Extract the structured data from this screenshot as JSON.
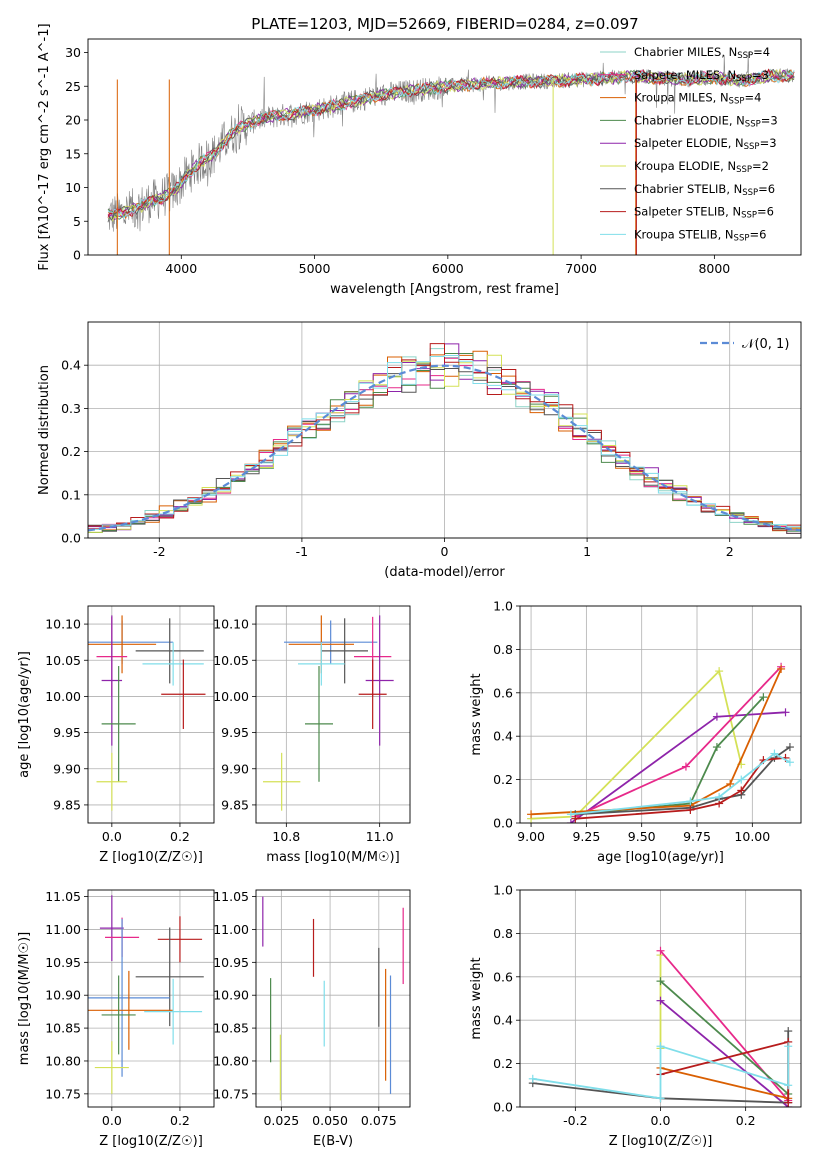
{
  "figure": {
    "title_parts": [
      "PLATE=1203, MJD=52669, FIBERID=0284, z=0.097"
    ],
    "panel_names": [
      "spectrum",
      "residuals",
      "age-metallicity",
      "age-mass",
      "age-weight",
      "mass-metallicity",
      "mass-ebv",
      "metallicity-weight"
    ]
  },
  "colors": {
    "chabrier_miles": "#8dd3c7",
    "salpeter_miles": "#e7298a",
    "kroupa_miles": "#d95f02",
    "chabrier_elodie": "#4d8a4d",
    "salpeter_elodie": "#8e24aa",
    "kroupa_elodie": "#d4e157",
    "chabrier_stelib": "#555555",
    "salpeter_stelib": "#b71c1c",
    "kroupa_stelib": "#80deea",
    "normal": "#5b8bd6",
    "data": "#808080"
  },
  "chart_data": [
    {
      "id": "spectrum",
      "type": "line",
      "title": "PLATE=1203, MJD=52669, FIBERID=0284, z=0.097",
      "xlabel": "wavelength [Angstrom, rest frame]",
      "ylabel": "Flux [fλ10^-17 erg cm^-2 s^-1 A^-1]",
      "xlim": [
        3300,
        8650
      ],
      "ylim": [
        0,
        32
      ],
      "xticks": [
        4000,
        5000,
        6000,
        7000,
        8000
      ],
      "yticks": [
        0,
        5,
        10,
        15,
        20,
        25,
        30
      ],
      "continuum": {
        "x": [
          3450,
          3550,
          3650,
          3750,
          3850,
          3950,
          4050,
          4150,
          4250,
          4350,
          4450,
          4600,
          4800,
          5000,
          5200,
          5400,
          5600,
          5800,
          6000,
          6200,
          6400,
          6600,
          6800,
          7000,
          7200,
          7400,
          7600,
          7800,
          8000,
          8200,
          8400
        ],
        "y": [
          5.8,
          6.2,
          6.8,
          7.8,
          8.5,
          9.5,
          12.0,
          13.8,
          15.0,
          17.5,
          19.0,
          20.2,
          20.8,
          21.5,
          22.3,
          23.3,
          24.0,
          24.5,
          25.0,
          25.3,
          25.5,
          25.7,
          25.8,
          26.0,
          26.2,
          26.5,
          26.2,
          26.0,
          26.3,
          25.8,
          26.5
        ]
      },
      "legend_placement": "right",
      "series": [
        {
          "name": "Chabrier MILES, N<sub>SSP</sub>=4",
          "color_key": "chabrier_miles"
        },
        {
          "name": "Salpeter MILES, N<sub>SSP</sub>=3",
          "color_key": "salpeter_miles"
        },
        {
          "name": "Kroupa MILES, N<sub>SSP</sub>=4",
          "color_key": "kroupa_miles"
        },
        {
          "name": "Chabrier ELODIE, N<sub>SSP</sub>=3",
          "color_key": "chabrier_elodie"
        },
        {
          "name": "Salpeter ELODIE, N<sub>SSP</sub>=3",
          "color_key": "salpeter_elodie"
        },
        {
          "name": "Kroupa ELODIE, N<sub>SSP</sub>=2",
          "color_key": "kroupa_elodie"
        },
        {
          "name": "Chabrier STELIB, N<sub>SSP</sub>=6",
          "color_key": "chabrier_stelib"
        },
        {
          "name": "Salpeter STELIB, N<sub>SSP</sub>=6",
          "color_key": "salpeter_stelib"
        },
        {
          "name": "Kroupa STELIB, N<sub>SSP</sub>=6",
          "color_key": "kroupa_stelib"
        }
      ],
      "edges": [
        {
          "x": 3520,
          "color_key": "kroupa_miles"
        },
        {
          "x": 3910,
          "color_key": "kroupa_miles"
        },
        {
          "x": 6790,
          "color_key": "kroupa_elodie"
        },
        {
          "x": 7410,
          "color_key": "kroupa_miles"
        },
        {
          "x": 7415,
          "color_key": "salpeter_stelib"
        }
      ]
    },
    {
      "id": "residuals",
      "type": "line",
      "xlabel": "(data-model)/error",
      "ylabel": "Normed distribution",
      "xlim": [
        -2.5,
        2.5
      ],
      "ylim": [
        0,
        0.5
      ],
      "xticks": [
        -2,
        -1,
        0,
        1,
        2
      ],
      "yticks": [
        0.0,
        0.1,
        0.2,
        0.3,
        0.4
      ],
      "grid": true,
      "legend_placement": "top-right",
      "normal_label": "𝒩(0, 1)",
      "bin_width": 0.1,
      "series_keys": [
        "chabrier_miles",
        "salpeter_miles",
        "kroupa_miles",
        "chabrier_elodie",
        "salpeter_elodie",
        "kroupa_elodie",
        "chabrier_stelib",
        "salpeter_stelib",
        "kroupa_stelib"
      ]
    },
    {
      "id": "age-metallicity",
      "type": "scatter",
      "xlabel": "Z [log10(Z/Z☉)]",
      "ylabel": "age [log10(age/yr)]",
      "xlim": [
        -0.07,
        0.3
      ],
      "ylim": [
        9.825,
        10.125
      ],
      "xticks": [
        0.0,
        0.2
      ],
      "yticks": [
        9.85,
        9.9,
        9.95,
        10.0,
        10.05,
        10.1
      ],
      "grid": true,
      "points": [
        {
          "x": 0.03,
          "y": 10.075,
          "xerr": 0.15,
          "yerr": 0.03,
          "color_key": "normal"
        },
        {
          "x": 0.03,
          "y": 10.072,
          "xerr": 0.1,
          "yerr": 0.04,
          "color_key": "kroupa_miles"
        },
        {
          "x": 0.17,
          "y": 10.063,
          "xerr": 0.1,
          "yerr": 0.045,
          "color_key": "chabrier_stelib"
        },
        {
          "x": 0.0,
          "y": 10.055,
          "xerr": 0.045,
          "yerr": 0.055,
          "color_key": "salpeter_miles"
        },
        {
          "x": 0.18,
          "y": 10.045,
          "xerr": 0.09,
          "yerr": 0.03,
          "color_key": "kroupa_stelib"
        },
        {
          "x": 0.0,
          "y": 10.022,
          "xerr": 0.03,
          "yerr": 0.09,
          "color_key": "salpeter_elodie"
        },
        {
          "x": 0.21,
          "y": 10.003,
          "xerr": 0.065,
          "yerr": 0.048,
          "color_key": "salpeter_stelib"
        },
        {
          "x": 0.02,
          "y": 9.962,
          "xerr": 0.05,
          "yerr": 0.08,
          "color_key": "chabrier_elodie"
        },
        {
          "x": 0.0,
          "y": 9.882,
          "xerr": 0.045,
          "yerr": 0.04,
          "color_key": "kroupa_elodie"
        }
      ]
    },
    {
      "id": "age-mass",
      "type": "scatter",
      "xlabel": "mass [log10(M/M☉)]",
      "ylabel": "",
      "xlim": [
        10.735,
        11.065
      ],
      "ylim": [
        9.825,
        10.125
      ],
      "xticks": [
        10.8,
        11.0
      ],
      "yticks": [
        9.85,
        9.9,
        9.95,
        10.0,
        10.05,
        10.1
      ],
      "grid": true,
      "points": [
        {
          "x": 10.895,
          "y": 10.075,
          "xerr": 0.1,
          "yerr": 0.03,
          "color_key": "normal"
        },
        {
          "x": 10.875,
          "y": 10.072,
          "xerr": 0.07,
          "yerr": 0.04,
          "color_key": "kroupa_miles"
        },
        {
          "x": 10.925,
          "y": 10.063,
          "xerr": 0.05,
          "yerr": 0.045,
          "color_key": "chabrier_stelib"
        },
        {
          "x": 10.985,
          "y": 10.055,
          "xerr": 0.04,
          "yerr": 0.055,
          "color_key": "salpeter_miles"
        },
        {
          "x": 10.875,
          "y": 10.045,
          "xerr": 0.05,
          "yerr": 0.03,
          "color_key": "kroupa_stelib"
        },
        {
          "x": 11.0,
          "y": 10.022,
          "xerr": 0.03,
          "yerr": 0.09,
          "color_key": "salpeter_elodie"
        },
        {
          "x": 10.985,
          "y": 10.003,
          "xerr": 0.03,
          "yerr": 0.048,
          "color_key": "salpeter_stelib"
        },
        {
          "x": 10.87,
          "y": 9.962,
          "xerr": 0.03,
          "yerr": 0.08,
          "color_key": "chabrier_elodie"
        },
        {
          "x": 10.79,
          "y": 9.882,
          "xerr": 0.04,
          "yerr": 0.04,
          "color_key": "kroupa_elodie"
        }
      ]
    },
    {
      "id": "age-weight",
      "type": "line",
      "xlabel": "age [log10(age/yr)]",
      "ylabel": "mass weight",
      "xlim": [
        8.95,
        10.22
      ],
      "ylim": [
        0,
        1
      ],
      "xticks": [
        9.0,
        9.25,
        9.5,
        9.75,
        10.0
      ],
      "yticks": [
        0.0,
        0.2,
        0.4,
        0.6,
        0.8,
        1.0
      ],
      "grid": true,
      "series": [
        {
          "color_key": "kroupa_elodie",
          "x": [
            9.0,
            9.2,
            9.85,
            9.95
          ],
          "y": [
            0.02,
            0.03,
            0.7,
            0.27
          ]
        },
        {
          "color_key": "salpeter_elodie",
          "x": [
            9.18,
            9.84,
            10.15
          ],
          "y": [
            0.0,
            0.49,
            0.51
          ]
        },
        {
          "color_key": "salpeter_miles",
          "x": [
            9.2,
            9.7,
            10.13
          ],
          "y": [
            0.03,
            0.26,
            0.72
          ]
        },
        {
          "color_key": "chabrier_elodie",
          "x": [
            9.2,
            9.72,
            9.84,
            10.05
          ],
          "y": [
            0.04,
            0.09,
            0.35,
            0.58
          ]
        },
        {
          "color_key": "kroupa_miles",
          "x": [
            9.0,
            9.72,
            9.9,
            10.13
          ],
          "y": [
            0.04,
            0.08,
            0.18,
            0.71
          ]
        },
        {
          "color_key": "chabrier_stelib",
          "x": [
            9.2,
            9.72,
            9.85,
            9.95,
            10.1,
            10.17
          ],
          "y": [
            0.04,
            0.07,
            0.11,
            0.13,
            0.3,
            0.35
          ]
        },
        {
          "color_key": "salpeter_stelib",
          "x": [
            9.2,
            9.72,
            9.85,
            9.95,
            10.05,
            10.15
          ],
          "y": [
            0.02,
            0.06,
            0.09,
            0.15,
            0.29,
            0.3
          ]
        },
        {
          "color_key": "kroupa_stelib",
          "x": [
            9.18,
            9.72,
            9.85,
            9.95,
            10.1,
            10.17
          ],
          "y": [
            0.04,
            0.1,
            0.12,
            0.2,
            0.32,
            0.28
          ]
        }
      ]
    },
    {
      "id": "mass-metallicity",
      "type": "scatter",
      "xlabel": "Z [log10(Z/Z☉)]",
      "ylabel": "mass [log10(M/M☉)]",
      "xlim": [
        -0.07,
        0.3
      ],
      "ylim": [
        10.73,
        11.06
      ],
      "xticks": [
        0.0,
        0.2
      ],
      "yticks": [
        10.75,
        10.8,
        10.85,
        10.9,
        10.95,
        11.0,
        11.05
      ],
      "grid": true,
      "points": [
        {
          "x": 0.0,
          "y": 11.002,
          "xerr": 0.035,
          "yerr": 0.05,
          "color_key": "salpeter_elodie"
        },
        {
          "x": 0.03,
          "y": 10.988,
          "xerr": 0.05,
          "yerr": 0.03,
          "color_key": "salpeter_miles"
        },
        {
          "x": 0.2,
          "y": 10.985,
          "xerr": 0.065,
          "yerr": 0.035,
          "color_key": "salpeter_stelib"
        },
        {
          "x": 0.17,
          "y": 10.928,
          "xerr": 0.1,
          "yerr": 0.075,
          "color_key": "chabrier_stelib"
        },
        {
          "x": 0.03,
          "y": 10.896,
          "xerr": 0.14,
          "yerr": 0.12,
          "color_key": "normal"
        },
        {
          "x": 0.05,
          "y": 10.877,
          "xerr": 0.13,
          "yerr": 0.06,
          "color_key": "kroupa_miles"
        },
        {
          "x": 0.18,
          "y": 10.875,
          "xerr": 0.085,
          "yerr": 0.05,
          "color_key": "kroupa_stelib"
        },
        {
          "x": 0.02,
          "y": 10.87,
          "xerr": 0.05,
          "yerr": 0.06,
          "color_key": "chabrier_elodie"
        },
        {
          "x": 0.0,
          "y": 10.79,
          "xerr": 0.05,
          "yerr": 0.04,
          "color_key": "kroupa_elodie"
        }
      ]
    },
    {
      "id": "mass-ebv",
      "type": "scatter",
      "xlabel": "E(B-V)",
      "ylabel": "",
      "xlim": [
        0.012,
        0.091
      ],
      "ylim": [
        10.73,
        11.06
      ],
      "xticks": [
        0.025,
        0.05,
        0.075
      ],
      "xticklabels": [
        "0.025",
        "0.050",
        "0.075"
      ],
      "yticks": [
        10.75,
        10.8,
        10.85,
        10.9,
        10.95,
        11.0,
        11.05
      ],
      "grid": true,
      "points": [
        {
          "x": 0.0155,
          "y": 11.012,
          "yerr": 0.038,
          "color_key": "salpeter_elodie"
        },
        {
          "x": 0.0195,
          "y": 10.862,
          "yerr": 0.064,
          "color_key": "chabrier_elodie"
        },
        {
          "x": 0.0245,
          "y": 10.79,
          "yerr": 0.05,
          "color_key": "kroupa_elodie"
        },
        {
          "x": 0.0415,
          "y": 10.972,
          "yerr": 0.044,
          "color_key": "salpeter_stelib"
        },
        {
          "x": 0.047,
          "y": 10.872,
          "yerr": 0.05,
          "color_key": "kroupa_stelib"
        },
        {
          "x": 0.075,
          "y": 10.912,
          "yerr": 0.06,
          "color_key": "chabrier_stelib"
        },
        {
          "x": 0.0785,
          "y": 10.855,
          "yerr": 0.085,
          "color_key": "kroupa_miles"
        },
        {
          "x": 0.081,
          "y": 10.84,
          "yerr": 0.09,
          "color_key": "normal"
        },
        {
          "x": 0.0875,
          "y": 10.975,
          "yerr": 0.058,
          "color_key": "salpeter_miles"
        }
      ]
    },
    {
      "id": "metallicity-weight",
      "type": "line",
      "xlabel": "Z [log10(Z/Z☉)]",
      "ylabel": "mass weight",
      "xlim": [
        -0.33,
        0.33
      ],
      "ylim": [
        0,
        1
      ],
      "xticks": [
        -0.2,
        0.0,
        0.2
      ],
      "yticks": [
        0.0,
        0.2,
        0.4,
        0.6,
        0.8,
        1.0
      ],
      "grid": true,
      "series": [
        {
          "color_key": "kroupa_elodie",
          "x": [
            0.0,
            0.0
          ],
          "y": [
            0.7,
            0.27
          ]
        },
        {
          "color_key": "salpeter_elodie",
          "x": [
            0.0,
            0.3
          ],
          "y": [
            0.49,
            0.0
          ]
        },
        {
          "color_key": "salpeter_miles",
          "x": [
            0.0,
            0.3
          ],
          "y": [
            0.72,
            0.03
          ]
        },
        {
          "color_key": "chabrier_elodie",
          "x": [
            0.0,
            0.3
          ],
          "y": [
            0.58,
            0.06
          ]
        },
        {
          "color_key": "kroupa_miles",
          "x": [
            0.0,
            0.3
          ],
          "y": [
            0.18,
            0.04
          ]
        },
        {
          "color_key": "chabrier_stelib",
          "x": [
            -0.3,
            0.0,
            0.3,
            0.3
          ],
          "y": [
            0.11,
            0.04,
            0.02,
            0.35
          ]
        },
        {
          "color_key": "salpeter_stelib",
          "x": [
            0.0,
            0.3,
            0.3
          ],
          "y": [
            0.15,
            0.3,
            0.02
          ]
        },
        {
          "color_key": "kroupa_stelib",
          "x": [
            -0.3,
            0.0,
            0.0,
            0.3,
            0.3
          ],
          "y": [
            0.13,
            0.04,
            0.28,
            0.1,
            0.28
          ]
        }
      ]
    }
  ]
}
